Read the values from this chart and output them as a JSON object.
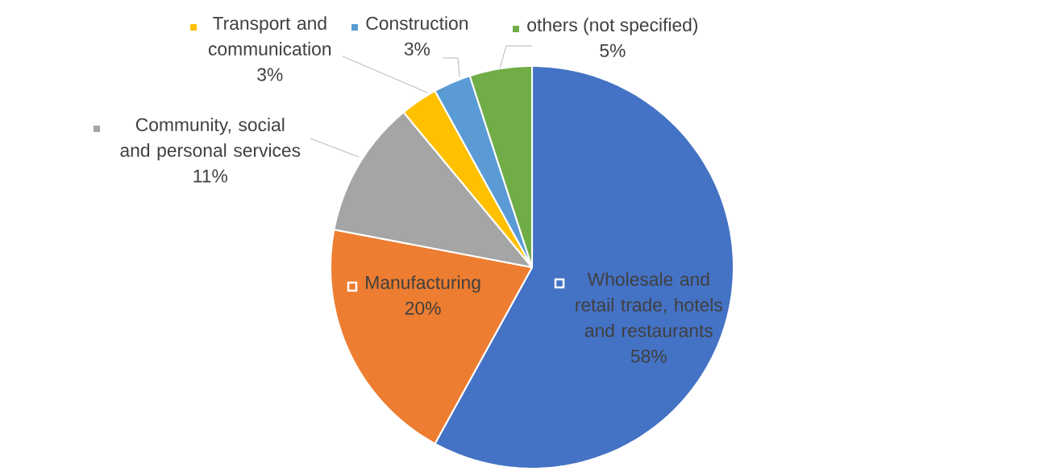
{
  "chart_data": {
    "type": "pie",
    "categories": [
      "Wholesale and retail trade, hotels and restaurants",
      "Manufacturing",
      "Community, social and personal services",
      "Transport and communication",
      "Construction",
      "others (not specified)"
    ],
    "values": [
      58,
      20,
      11,
      3,
      3,
      5
    ],
    "colors": [
      "#4472c4",
      "#ed7d31",
      "#a5a5a5",
      "#ffc000",
      "#5b9bd5",
      "#70ad47"
    ],
    "value_labels": [
      "58%",
      "20%",
      "11%",
      "3%",
      "3%",
      "5%"
    ],
    "legend": "top"
  }
}
